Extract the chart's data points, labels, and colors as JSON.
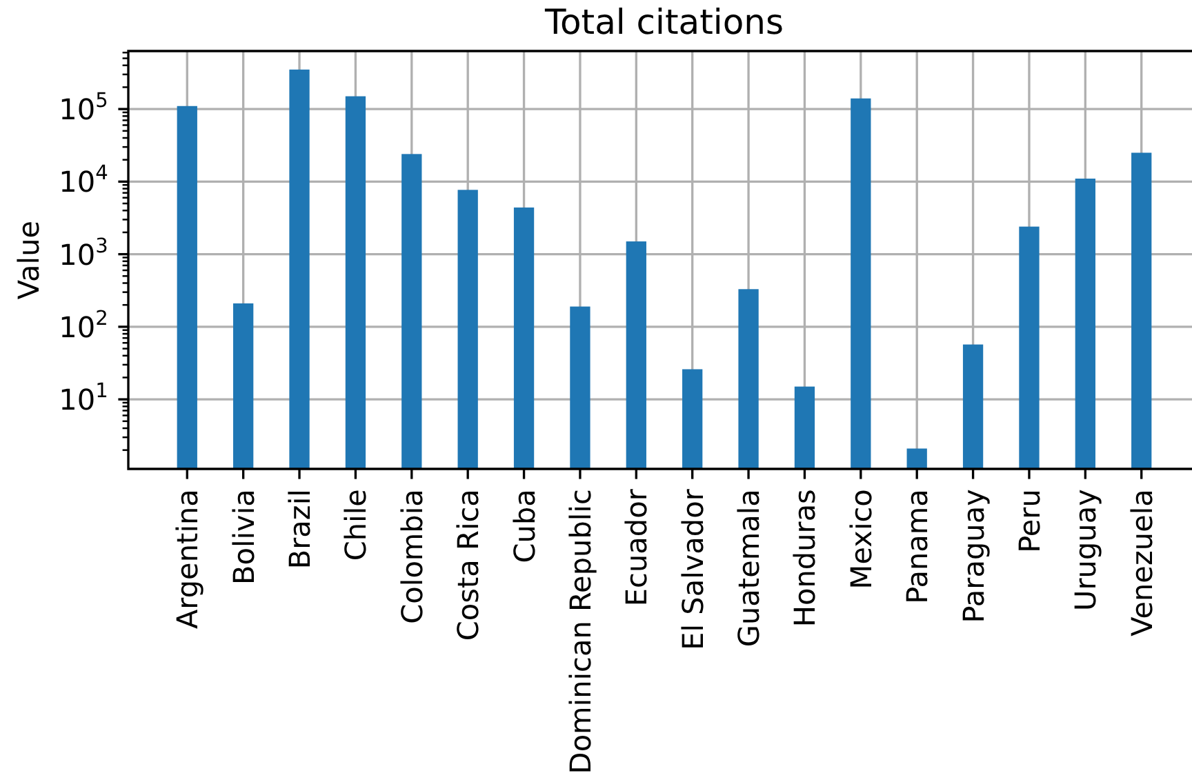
{
  "chart_data": {
    "type": "bar",
    "title": "Total citations",
    "ylabel": "Value",
    "categories": [
      "Argentina",
      "Bolivia",
      "Brazil",
      "Chile",
      "Colombia",
      "Costa Rica",
      "Cuba",
      "Dominican Republic",
      "Ecuador",
      "El Salvador",
      "Guatemala",
      "Honduras",
      "Mexico",
      "Panama",
      "Paraguay",
      "Peru",
      "Uruguay",
      "Venezuela"
    ],
    "values": [
      110000,
      210,
      350000,
      150000,
      24000,
      7700,
      4400,
      190,
      1500,
      26,
      330,
      15,
      140000,
      2.1,
      57,
      2400,
      11000,
      25000
    ],
    "color": "#1f77b4",
    "log": true,
    "ylim": [
      1.1,
      630000
    ],
    "yticks": [
      {
        "value": 2,
        "label": null
      },
      {
        "value": 3,
        "label": null
      },
      {
        "value": 4,
        "label": null
      },
      {
        "value": 5,
        "label": null
      },
      {
        "value": 6,
        "label": null
      },
      {
        "value": 7,
        "label": null
      },
      {
        "value": 8,
        "label": null
      },
      {
        "value": 9,
        "label": null
      },
      {
        "value": 10,
        "label": "10$^{1}$"
      },
      {
        "value": 20,
        "label": null
      },
      {
        "value": 30,
        "label": null
      },
      {
        "value": 40,
        "label": null
      },
      {
        "value": 50,
        "label": null
      },
      {
        "value": 60,
        "label": null
      },
      {
        "value": 70,
        "label": null
      },
      {
        "value": 80,
        "label": null
      },
      {
        "value": 90,
        "label": null
      },
      {
        "value": 100,
        "label": "10$^{2}$"
      },
      {
        "value": 200,
        "label": null
      },
      {
        "value": 300,
        "label": null
      },
      {
        "value": 400,
        "label": null
      },
      {
        "value": 500,
        "label": null
      },
      {
        "value": 600,
        "label": null
      },
      {
        "value": 700,
        "label": null
      },
      {
        "value": 800,
        "label": null
      },
      {
        "value": 900,
        "label": null
      },
      {
        "value": 1000,
        "label": "10$^{3}$"
      },
      {
        "value": 2000,
        "label": null
      },
      {
        "value": 3000,
        "label": null
      },
      {
        "value": 4000,
        "label": null
      },
      {
        "value": 5000,
        "label": null
      },
      {
        "value": 6000,
        "label": null
      },
      {
        "value": 7000,
        "label": null
      },
      {
        "value": 8000,
        "label": null
      },
      {
        "value": 9000,
        "label": null
      },
      {
        "value": 10000,
        "label": "10$^{4}$"
      },
      {
        "value": 20000,
        "label": null
      },
      {
        "value": 30000,
        "label": null
      },
      {
        "value": 40000,
        "label": null
      },
      {
        "value": 50000,
        "label": null
      },
      {
        "value": 60000,
        "label": null
      },
      {
        "value": 70000,
        "label": null
      },
      {
        "value": 80000,
        "label": null
      },
      {
        "value": 90000,
        "label": null
      },
      {
        "value": 100000,
        "label": "10$^{5}$"
      },
      {
        "value": 200000,
        "label": null
      },
      {
        "value": 300000,
        "label": null
      },
      {
        "value": 400000,
        "label": null
      },
      {
        "value": 500000,
        "label": null
      },
      {
        "value": 600000,
        "label": null
      }
    ],
    "grid": true
  }
}
